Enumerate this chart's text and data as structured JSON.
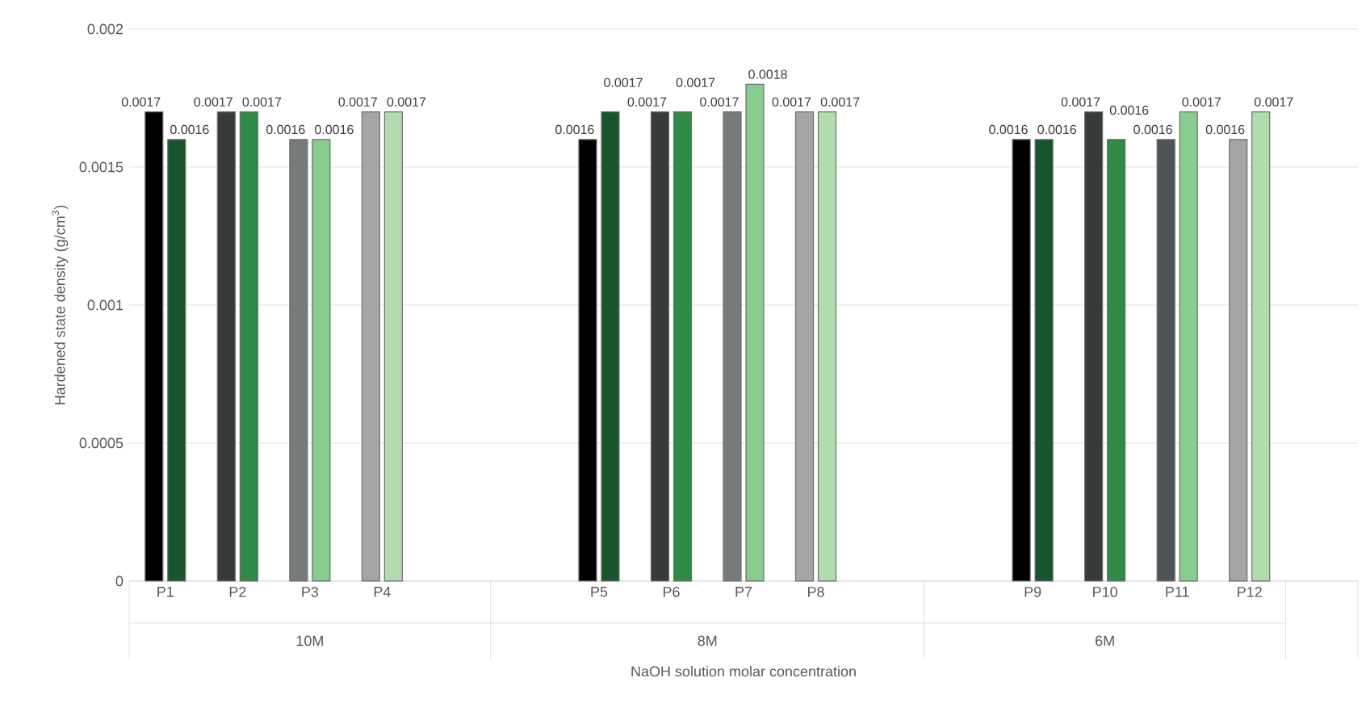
{
  "chart_data": {
    "type": "bar",
    "ylabel": "Hardened state density (g/cm$^{3}$)",
    "xlabel": "NaOH solution molar concentration",
    "categories": [
      "P1",
      "P2",
      "P3",
      "P4",
      null,
      null,
      "P5",
      "P6",
      "P7",
      "P8",
      null,
      null,
      "P9",
      "P10",
      "P11",
      "P12",
      null
    ],
    "annotations": [
      "10M",
      "8M",
      "6M"
    ],
    "series": [
      {
        "colors": [
          "#000000",
          "#363a3b",
          "#767a7b",
          "#a5a5a5",
          null,
          null,
          "#000000",
          "#363a3b",
          "#767a7b",
          "#a5a5a5",
          null,
          null,
          "#000000",
          "#363a3b",
          "#4f5456",
          "#a5a5a5",
          null
        ],
        "values": [
          0.0017,
          0.0017,
          0.0016,
          0.0017,
          null,
          null,
          0.0016,
          0.0017,
          0.0017,
          0.0017,
          null,
          null,
          0.0016,
          0.0017,
          0.0016,
          0.0016,
          null
        ]
      },
      {
        "colors": [
          "#17562d",
          "#2e8b45",
          "#88cc8f",
          "#b0dcae",
          null,
          null,
          "#17562d",
          "#2e8b45",
          "#88cc8f",
          "#b0dcae",
          null,
          null,
          "#17562d",
          "#2e8b45",
          "#88cc8f",
          "#b0dcae",
          null
        ],
        "values": [
          0.0016,
          0.0017,
          0.0016,
          0.0017,
          null,
          null,
          0.0017,
          0.0017,
          0.0018,
          0.0017,
          null,
          null,
          0.0016,
          0.0016,
          0.0017,
          0.0017,
          null
        ]
      }
    ],
    "ylim": [
      0,
      0.002
    ],
    "yticks": [
      0,
      0.0005,
      0.001,
      0.0015,
      0.002
    ],
    "grid": "y",
    "data_labels": true
  }
}
